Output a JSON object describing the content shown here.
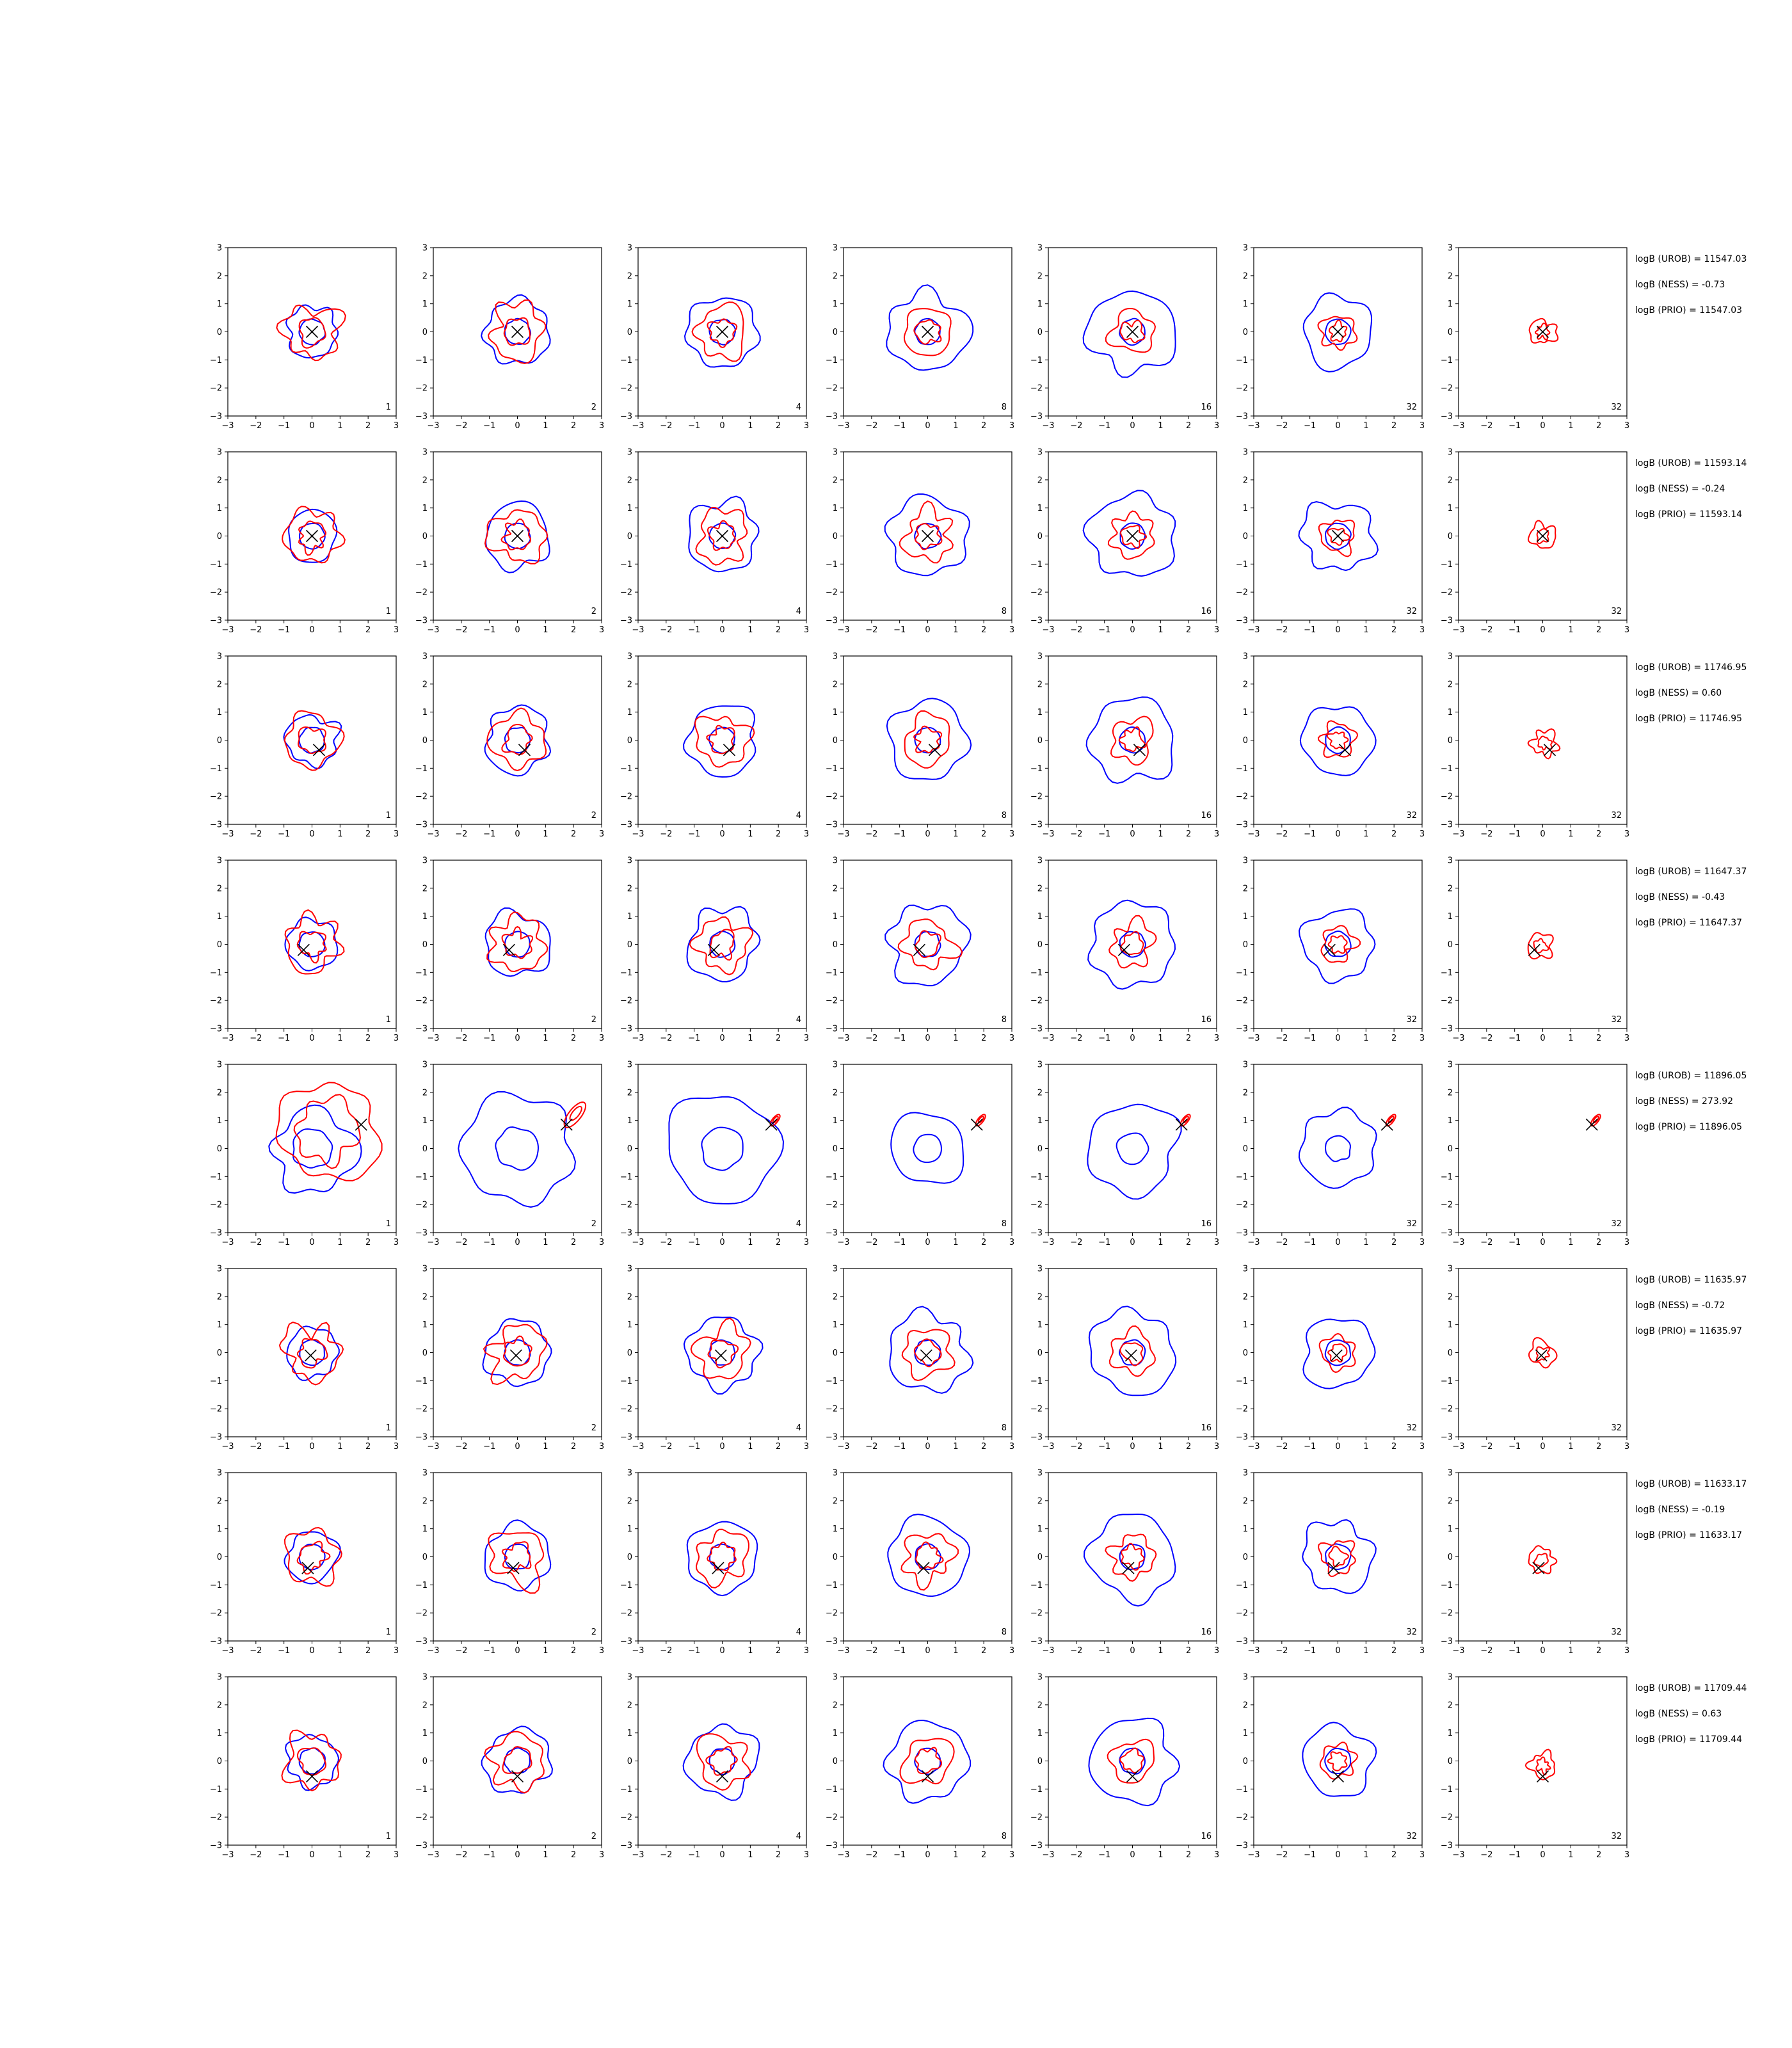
{
  "figure": {
    "col_n_labels": [
      "1",
      "2",
      "4",
      "8",
      "16",
      "32",
      "32"
    ],
    "tick_labels": [
      "−3",
      "−2",
      "−1",
      "0",
      "1",
      "2",
      "3"
    ],
    "xlim": [
      -3,
      3
    ],
    "ylim": [
      -3,
      3
    ],
    "colors": {
      "blue": "#0000ff",
      "red": "#ff0000",
      "marker": "#000000"
    }
  },
  "chart_data": {
    "type": "contour-grid",
    "xlim": [
      -3,
      3
    ],
    "ylim": [
      -3,
      3
    ],
    "grid": false,
    "rows": [
      {
        "marker": [
          0.0,
          0.0
        ],
        "stats": [
          "logB (UROB) = 11547.03",
          "logB (NESS) = -0.73",
          "logB (PRIO) = 11547.03"
        ]
      },
      {
        "marker": [
          0.0,
          0.0
        ],
        "stats": [
          "logB (UROB) = 11593.14",
          "logB (NESS) = -0.24",
          "logB (PRIO) = 11593.14"
        ]
      },
      {
        "marker": [
          0.25,
          -0.35
        ],
        "stats": [
          "logB (UROB) = 11746.95",
          "logB (NESS) = 0.60",
          "logB (PRIO) = 11746.95"
        ]
      },
      {
        "marker": [
          -0.3,
          -0.2
        ],
        "stats": [
          "logB (UROB) = 11647.37",
          "logB (NESS) = -0.43",
          "logB (PRIO) = 11647.37"
        ]
      },
      {
        "marker": [
          1.75,
          0.85
        ],
        "stats": [
          "logB (UROB) = 11896.05",
          "logB (NESS) = 273.92",
          "logB (PRIO) = 11896.05"
        ]
      },
      {
        "marker": [
          -0.05,
          -0.1
        ],
        "stats": [
          "logB (UROB) = 11635.97",
          "logB (NESS) = -0.72",
          "logB (PRIO) = 11635.97"
        ]
      },
      {
        "marker": [
          -0.15,
          -0.4
        ],
        "stats": [
          "logB (UROB) = 11633.17",
          "logB (NESS) = -0.19",
          "logB (PRIO) = 11633.17"
        ]
      },
      {
        "marker": [
          0.0,
          -0.55
        ],
        "stats": [
          "logB (UROB) = 11709.44",
          "logB (NESS) = 0.63",
          "logB (PRIO) = 11709.44"
        ]
      }
    ]
  }
}
